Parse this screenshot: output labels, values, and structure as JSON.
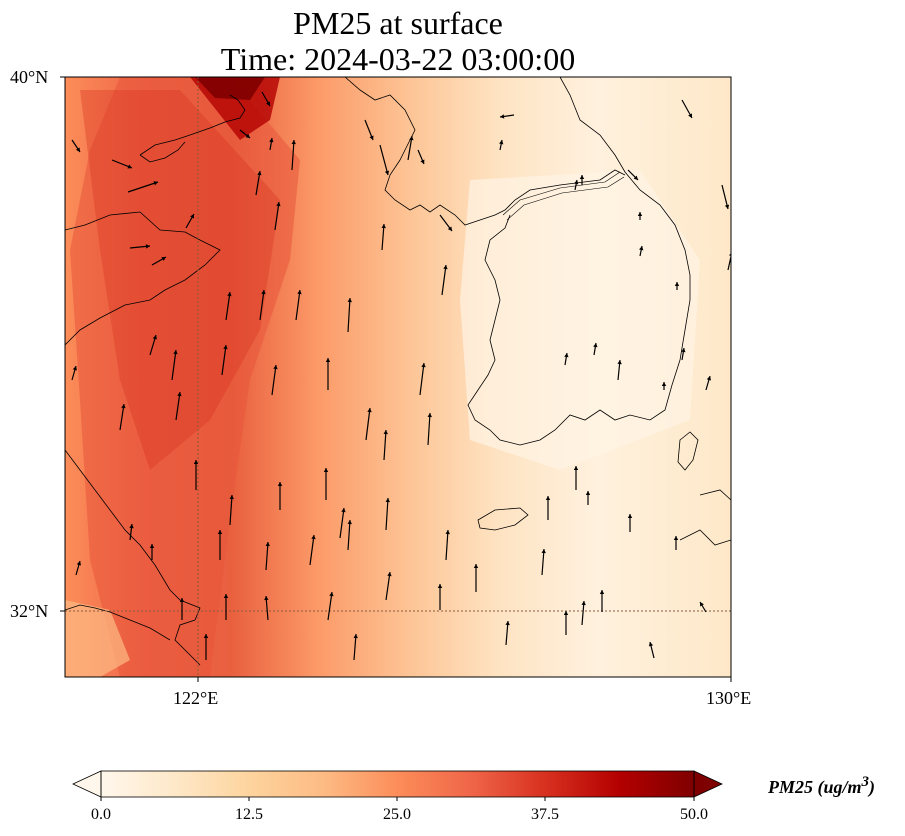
{
  "title": {
    "line1": "PM25 at surface",
    "line2": "Time: 2024-03-22 03:00:00"
  },
  "axes": {
    "lat_ticks": [
      "40°N",
      "32°N"
    ],
    "lon_ticks": [
      "122°E",
      "130°E"
    ],
    "lat_range": [
      31,
      40
    ],
    "lon_range": [
      120,
      130
    ]
  },
  "colorbar": {
    "label": "PM25 (ug/m",
    "label_sup": "3",
    "label_close": ")",
    "ticks": [
      "0.0",
      "12.5",
      "25.0",
      "37.5",
      "50.0"
    ],
    "range": [
      0,
      50
    ],
    "extend": "both",
    "colormap": [
      "#fff7ec",
      "#fee8c8",
      "#fdd49e",
      "#fdbb84",
      "#fc8d59",
      "#ef6548",
      "#d7301f",
      "#b30000",
      "#7f0000"
    ]
  },
  "map_colors": {
    "background": "#fdebd0",
    "coastline": "#000000",
    "gridline": "#8b5a3c"
  },
  "wind_arrow_color": "#000000"
}
